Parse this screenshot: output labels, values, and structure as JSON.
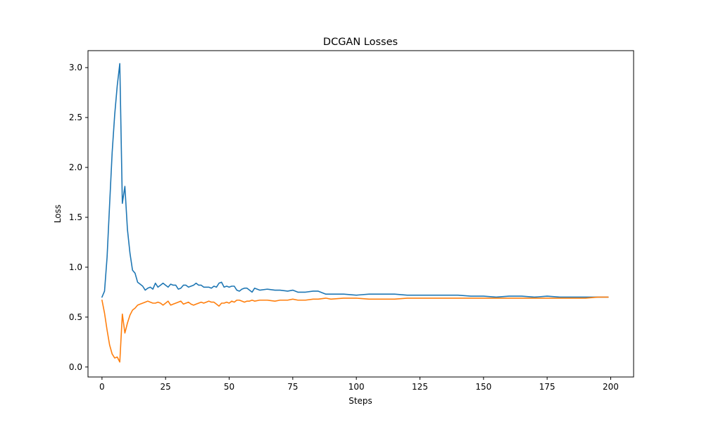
{
  "chart_data": {
    "type": "line",
    "title": "DCGAN Losses",
    "xlabel": "Steps",
    "ylabel": "Loss",
    "xlim": [
      -5.5,
      209
    ],
    "ylim": [
      -0.1,
      3.17
    ],
    "x_ticks": [
      0,
      25,
      50,
      75,
      100,
      125,
      150,
      175,
      200
    ],
    "y_ticks": [
      0.0,
      0.5,
      1.0,
      1.5,
      2.0,
      2.5,
      3.0
    ],
    "x_tick_labels": [
      "0",
      "25",
      "50",
      "75",
      "100",
      "125",
      "150",
      "175",
      "200"
    ],
    "y_tick_labels": [
      "0.0",
      "0.5",
      "1.0",
      "1.5",
      "2.0",
      "2.5",
      "3.0"
    ],
    "grid": false,
    "legend": "none",
    "series": [
      {
        "color": "#1f77b4",
        "x": [
          0,
          1,
          2,
          3,
          4,
          5,
          6,
          7,
          8,
          9,
          10,
          11,
          12,
          13,
          14,
          15,
          16,
          17,
          18,
          19,
          20,
          21,
          22,
          23,
          24,
          25,
          26,
          27,
          28,
          29,
          30,
          31,
          32,
          33,
          34,
          35,
          36,
          37,
          38,
          39,
          40,
          41,
          42,
          43,
          44,
          45,
          46,
          47,
          48,
          49,
          50,
          51,
          52,
          53,
          54,
          55,
          56,
          57,
          58,
          59,
          60,
          62,
          65,
          68,
          70,
          73,
          75,
          77,
          80,
          83,
          85,
          88,
          90,
          95,
          100,
          105,
          110,
          115,
          120,
          125,
          130,
          135,
          140,
          145,
          150,
          155,
          160,
          165,
          170,
          175,
          180,
          185,
          190,
          195,
          199
        ],
        "values": [
          0.7,
          0.76,
          1.1,
          1.63,
          2.15,
          2.53,
          2.82,
          3.04,
          1.64,
          1.81,
          1.38,
          1.14,
          0.97,
          0.94,
          0.85,
          0.83,
          0.81,
          0.77,
          0.79,
          0.8,
          0.78,
          0.84,
          0.8,
          0.82,
          0.84,
          0.82,
          0.8,
          0.83,
          0.82,
          0.82,
          0.78,
          0.79,
          0.82,
          0.82,
          0.8,
          0.81,
          0.82,
          0.84,
          0.82,
          0.82,
          0.8,
          0.8,
          0.8,
          0.79,
          0.81,
          0.8,
          0.84,
          0.85,
          0.8,
          0.81,
          0.8,
          0.81,
          0.81,
          0.77,
          0.76,
          0.78,
          0.79,
          0.79,
          0.77,
          0.75,
          0.79,
          0.77,
          0.78,
          0.77,
          0.77,
          0.76,
          0.77,
          0.75,
          0.75,
          0.76,
          0.76,
          0.73,
          0.73,
          0.73,
          0.72,
          0.73,
          0.73,
          0.73,
          0.72,
          0.72,
          0.72,
          0.72,
          0.72,
          0.71,
          0.71,
          0.7,
          0.71,
          0.71,
          0.7,
          0.71,
          0.7,
          0.7,
          0.7,
          0.7,
          0.7
        ]
      },
      {
        "color": "#ff7f0e",
        "x": [
          0,
          1,
          2,
          3,
          4,
          5,
          6,
          7,
          8,
          9,
          10,
          11,
          12,
          13,
          14,
          15,
          16,
          17,
          18,
          19,
          20,
          21,
          22,
          23,
          24,
          25,
          26,
          27,
          28,
          29,
          30,
          31,
          32,
          33,
          34,
          35,
          36,
          37,
          38,
          39,
          40,
          41,
          42,
          43,
          44,
          45,
          46,
          47,
          48,
          49,
          50,
          51,
          52,
          53,
          54,
          55,
          56,
          57,
          58,
          59,
          60,
          62,
          65,
          68,
          70,
          73,
          75,
          77,
          80,
          83,
          85,
          88,
          90,
          95,
          100,
          105,
          110,
          115,
          120,
          125,
          130,
          135,
          140,
          145,
          150,
          155,
          160,
          165,
          170,
          175,
          180,
          185,
          190,
          195,
          199
        ],
        "values": [
          0.67,
          0.54,
          0.37,
          0.22,
          0.13,
          0.09,
          0.1,
          0.05,
          0.53,
          0.34,
          0.44,
          0.52,
          0.57,
          0.59,
          0.62,
          0.63,
          0.64,
          0.65,
          0.66,
          0.65,
          0.64,
          0.64,
          0.65,
          0.64,
          0.62,
          0.64,
          0.66,
          0.62,
          0.63,
          0.64,
          0.65,
          0.66,
          0.63,
          0.64,
          0.65,
          0.63,
          0.62,
          0.63,
          0.64,
          0.65,
          0.64,
          0.65,
          0.66,
          0.65,
          0.65,
          0.63,
          0.61,
          0.64,
          0.64,
          0.65,
          0.64,
          0.66,
          0.65,
          0.67,
          0.67,
          0.66,
          0.65,
          0.66,
          0.66,
          0.67,
          0.66,
          0.67,
          0.67,
          0.66,
          0.67,
          0.67,
          0.68,
          0.67,
          0.67,
          0.68,
          0.68,
          0.69,
          0.68,
          0.69,
          0.69,
          0.68,
          0.68,
          0.68,
          0.69,
          0.69,
          0.69,
          0.69,
          0.69,
          0.69,
          0.69,
          0.69,
          0.69,
          0.69,
          0.69,
          0.69,
          0.69,
          0.69,
          0.69,
          0.7,
          0.7
        ]
      }
    ]
  }
}
